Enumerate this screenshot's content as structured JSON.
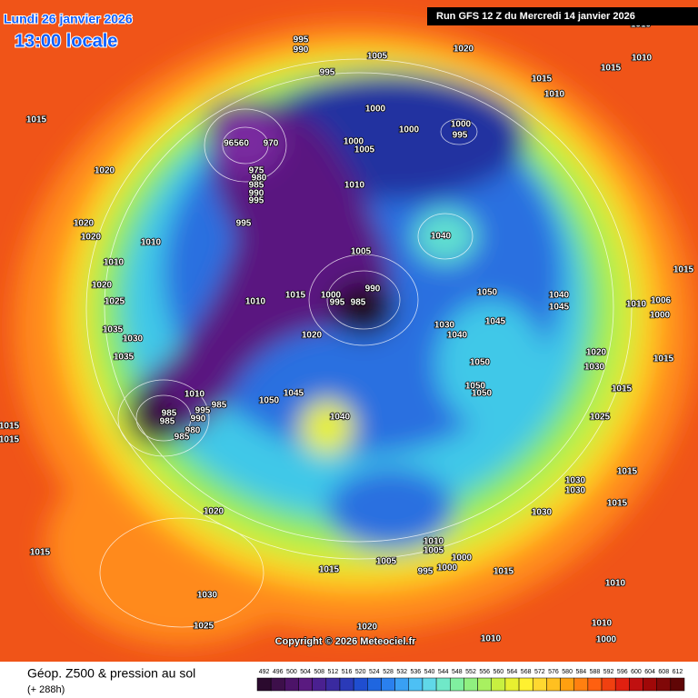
{
  "header": {
    "date": "Lundi 26 janvier 2026",
    "time": "13:00 locale",
    "run": "Run GFS 12 Z du Mercredi 14 janvier 2026"
  },
  "pressure_labels": [
    "995",
    "990",
    "1005",
    "1020",
    "1010",
    "1015",
    "1010",
    "995",
    "1015",
    "1010",
    "1000",
    "1000",
    "1000",
    "995",
    "96560",
    "970",
    "1000",
    "1005",
    "1015",
    "1020",
    "975",
    "980",
    "985",
    "990",
    "995",
    "1010",
    "995",
    "1020",
    "1020",
    "1010",
    "1040",
    "1010",
    "1005",
    "1015",
    "1020",
    "1050",
    "1040",
    "990",
    "1010",
    "1015",
    "1000",
    "995",
    "985",
    "1010",
    "1006",
    "1045",
    "1000",
    "1025",
    "1045",
    "1030",
    "1035",
    "1030",
    "1020",
    "1040",
    "1020",
    "1035",
    "1015",
    "1050",
    "1030",
    "1050",
    "1050",
    "1015",
    "1010",
    "1045",
    "1050",
    "1025",
    "985",
    "985",
    "995",
    "985",
    "990",
    "1040",
    "1015",
    "1015",
    "980",
    "985",
    "1015",
    "1030",
    "1030",
    "1015",
    "1020",
    "1030",
    "1015",
    "1010",
    "1005",
    "1000",
    "1005",
    "995",
    "1000",
    "1015",
    "1015",
    "1010",
    "1030",
    "1010",
    "1025",
    "1020",
    "1010",
    "1000"
  ],
  "footer": {
    "title": "Géop. Z500 & pression au sol",
    "lead": "(+ 288h)",
    "copyright": "Copyright © 2026 Meteociel.fr"
  },
  "scale": {
    "values": [
      492,
      496,
      500,
      504,
      508,
      512,
      516,
      520,
      524,
      528,
      532,
      536,
      540,
      544,
      548,
      552,
      556,
      560,
      564,
      568,
      572,
      576,
      580,
      584,
      588,
      592,
      596,
      600,
      604,
      608,
      612
    ]
  }
}
